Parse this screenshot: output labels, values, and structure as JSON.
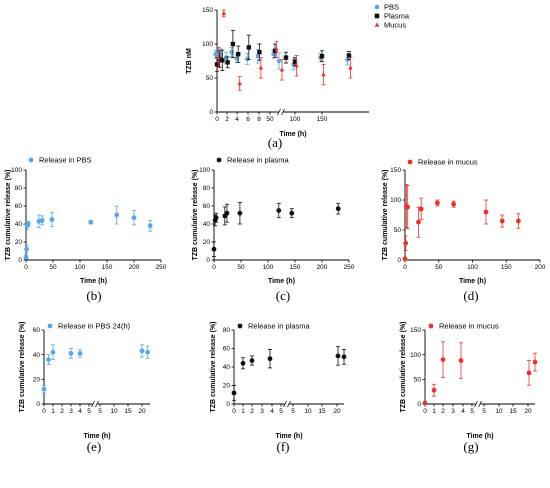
{
  "colors": {
    "pbs": "#5aa6e6",
    "plasma": "#111111",
    "mucus": "#e8332e"
  },
  "chart_data": [
    {
      "panel": "(a)",
      "type": "scatter",
      "xlabel": "Time (h)",
      "ylabel": "TZB nM",
      "ylim": [
        0,
        150
      ],
      "y_ticks": [
        "0",
        "50",
        "100",
        "150"
      ],
      "x_ticks": [
        "0",
        "2",
        "4",
        "6",
        "8",
        "50",
        "100",
        "150"
      ],
      "x_axis_broken": true,
      "grid": false,
      "legend_position": "top-right",
      "series": [
        {
          "name": "PBS",
          "marker": "circle",
          "color_key": "pbs",
          "points": [
            {
              "x": 0,
              "y": 85,
              "err": 6
            },
            {
              "x": 0.5,
              "y": 83,
              "err": 10
            },
            {
              "x": 1,
              "y": 85,
              "err": 8
            },
            {
              "x": 2,
              "y": 80,
              "err": 8
            },
            {
              "x": 3,
              "y": 88,
              "err": 7
            },
            {
              "x": 4,
              "y": 79,
              "err": 6
            },
            {
              "x": 6,
              "y": 78,
              "err": 8
            },
            {
              "x": 8,
              "y": 82,
              "err": 10
            },
            {
              "x": 10,
              "y": 85,
              "err": 6
            },
            {
              "x": 20,
              "y": 75,
              "err": 12
            },
            {
              "x": 50,
              "y": 70,
              "err": 8
            },
            {
              "x": 100,
              "y": 80,
              "err": 6
            },
            {
              "x": 150,
              "y": 77,
              "err": 8
            }
          ]
        },
        {
          "name": "Plasma",
          "marker": "square",
          "color_key": "plasma",
          "points": [
            {
              "x": 0,
              "y": 70,
              "err": 10
            },
            {
              "x": 0.5,
              "y": 78,
              "err": 12
            },
            {
              "x": 1,
              "y": 76,
              "err": 15
            },
            {
              "x": 2,
              "y": 73,
              "err": 8
            },
            {
              "x": 3,
              "y": 100,
              "err": 20
            },
            {
              "x": 4,
              "y": 85,
              "err": 12
            },
            {
              "x": 6,
              "y": 95,
              "err": 18
            },
            {
              "x": 8,
              "y": 88,
              "err": 12
            },
            {
              "x": 10,
              "y": 90,
              "err": 10
            },
            {
              "x": 30,
              "y": 80,
              "err": 8
            },
            {
              "x": 50,
              "y": 74,
              "err": 6
            },
            {
              "x": 100,
              "y": 82,
              "err": 8
            },
            {
              "x": 150,
              "y": 83,
              "err": 6
            }
          ]
        },
        {
          "name": "Mucus",
          "marker": "triangle",
          "color_key": "mucus",
          "points": [
            {
              "x": 0,
              "y": 80,
              "err": 15
            },
            {
              "x": 1,
              "y": 145,
              "err": 5
            },
            {
              "x": 4,
              "y": 42,
              "err": 10
            },
            {
              "x": 8,
              "y": 65,
              "err": 15
            },
            {
              "x": 10,
              "y": 92,
              "err": 12
            },
            {
              "x": 20,
              "y": 62,
              "err": 15
            },
            {
              "x": 50,
              "y": 68,
              "err": 15
            },
            {
              "x": 100,
              "y": 55,
              "err": 15
            },
            {
              "x": 150,
              "y": 65,
              "err": 15
            }
          ]
        }
      ]
    },
    {
      "panel": "(b)",
      "type": "scatter",
      "xlabel": "Time (h)",
      "ylabel": "TZB cumulative release (%)",
      "xlim": [
        0,
        250
      ],
      "ylim": [
        0,
        100
      ],
      "x_ticks": [
        "0",
        "50",
        "100",
        "150",
        "200",
        "250"
      ],
      "y_ticks": [
        "0",
        "20",
        "40",
        "60",
        "80",
        "100"
      ],
      "series": [
        {
          "name": "Release in PBS",
          "color_key": "pbs",
          "points": [
            {
              "x": 0,
              "y": 3,
              "err": 2
            },
            {
              "x": 1,
              "y": 12,
              "err": 4
            },
            {
              "x": 2,
              "y": 38,
              "err": 4
            },
            {
              "x": 4,
              "y": 40,
              "err": 3
            },
            {
              "x": 24,
              "y": 43,
              "err": 7
            },
            {
              "x": 30,
              "y": 44,
              "err": 5
            },
            {
              "x": 48,
              "y": 45,
              "err": 8
            },
            {
              "x": 120,
              "y": 42,
              "err": 2
            },
            {
              "x": 168,
              "y": 50,
              "err": 10
            },
            {
              "x": 200,
              "y": 47,
              "err": 8
            },
            {
              "x": 230,
              "y": 38,
              "err": 6
            }
          ]
        }
      ]
    },
    {
      "panel": "(c)",
      "type": "scatter",
      "xlabel": "Time (h)",
      "ylabel": "TZB cumulative release (%)",
      "xlim": [
        0,
        250
      ],
      "ylim": [
        0,
        100
      ],
      "x_ticks": [
        "0",
        "50",
        "100",
        "150",
        "200",
        "250"
      ],
      "y_ticks": [
        "0",
        "20",
        "40",
        "60",
        "80",
        "100"
      ],
      "series": [
        {
          "name": "Release in plasma",
          "color_key": "plasma",
          "points": [
            {
              "x": 0,
              "y": 12,
              "err": 8
            },
            {
              "x": 2,
              "y": 44,
              "err": 6
            },
            {
              "x": 4,
              "y": 47,
              "err": 5
            },
            {
              "x": 20,
              "y": 49,
              "err": 10
            },
            {
              "x": 24,
              "y": 52,
              "err": 10
            },
            {
              "x": 48,
              "y": 52,
              "err": 12
            },
            {
              "x": 120,
              "y": 55,
              "err": 8
            },
            {
              "x": 144,
              "y": 52,
              "err": 5
            },
            {
              "x": 230,
              "y": 57,
              "err": 6
            }
          ]
        }
      ]
    },
    {
      "panel": "(d)",
      "type": "scatter",
      "xlabel": "Time (h)",
      "ylabel": "TZB cumulative release (%)",
      "xlim": [
        0,
        200
      ],
      "ylim": [
        0,
        150
      ],
      "x_ticks": [
        "0",
        "50",
        "100",
        "150",
        "200"
      ],
      "y_ticks": [
        "0",
        "50",
        "100",
        "150"
      ],
      "series": [
        {
          "name": "Release in mucus",
          "color_key": "mucus",
          "points": [
            {
              "x": 0,
              "y": 2,
              "err": 2
            },
            {
              "x": 1,
              "y": 28,
              "err": 12
            },
            {
              "x": 2,
              "y": 90,
              "err": 36
            },
            {
              "x": 4,
              "y": 88,
              "err": 36
            },
            {
              "x": 20,
              "y": 63,
              "err": 25
            },
            {
              "x": 24,
              "y": 85,
              "err": 18
            },
            {
              "x": 48,
              "y": 95,
              "err": 5
            },
            {
              "x": 72,
              "y": 93,
              "err": 5
            },
            {
              "x": 120,
              "y": 80,
              "err": 20
            },
            {
              "x": 144,
              "y": 65,
              "err": 10
            },
            {
              "x": 168,
              "y": 65,
              "err": 12
            }
          ]
        }
      ]
    },
    {
      "panel": "(e)",
      "type": "scatter",
      "xlabel": "Time (h)",
      "ylabel": "TZB cumulative release (%)",
      "ylim": [
        0,
        60
      ],
      "x_axis_broken": true,
      "x_ticks": [
        "0",
        "1",
        "2",
        "3",
        "4",
        "5",
        "5",
        "10",
        "15",
        "20"
      ],
      "y_ticks": [
        "0",
        "20",
        "40",
        "60"
      ],
      "series": [
        {
          "name": "Release in PBS 24(h)",
          "color_key": "pbs",
          "points": [
            {
              "x": 0,
              "y": 12,
              "err": 3
            },
            {
              "x": 0.5,
              "y": 36,
              "err": 4
            },
            {
              "x": 1,
              "y": 42,
              "err": 6
            },
            {
              "x": 3,
              "y": 41,
              "err": 4
            },
            {
              "x": 4,
              "y": 41,
              "err": 3
            },
            {
              "x": 20,
              "y": 43,
              "err": 5
            },
            {
              "x": 22,
              "y": 42,
              "err": 5
            }
          ]
        }
      ]
    },
    {
      "panel": "(f)",
      "type": "scatter",
      "xlabel": "Time (h)",
      "ylabel": "TZB cumulative release (%)",
      "ylim": [
        0,
        80
      ],
      "x_axis_broken": true,
      "x_ticks": [
        "0",
        "1",
        "2",
        "3",
        "4",
        "5",
        "5",
        "10",
        "15",
        "20"
      ],
      "y_ticks": [
        "0",
        "20",
        "40",
        "60",
        "80"
      ],
      "series": [
        {
          "name": "Release in plasma",
          "color_key": "plasma",
          "points": [
            {
              "x": 0,
              "y": 12,
              "err": 8
            },
            {
              "x": 1,
              "y": 44,
              "err": 6
            },
            {
              "x": 2,
              "y": 47,
              "err": 5
            },
            {
              "x": 4,
              "y": 49,
              "err": 10
            },
            {
              "x": 20,
              "y": 52,
              "err": 10
            },
            {
              "x": 22,
              "y": 51,
              "err": 8
            }
          ]
        }
      ]
    },
    {
      "panel": "(g)",
      "type": "scatter",
      "xlabel": "Time (h)",
      "ylabel": "TZB cumulative release (%)",
      "ylim": [
        0,
        150
      ],
      "x_axis_broken": true,
      "x_ticks": [
        "0",
        "1",
        "2",
        "3",
        "4",
        "5",
        "5",
        "10",
        "15",
        "20"
      ],
      "y_ticks": [
        "0",
        "50",
        "100",
        "150"
      ],
      "series": [
        {
          "name": "Release in mucus",
          "color_key": "mucus",
          "points": [
            {
              "x": 0,
              "y": 2,
              "err": 2
            },
            {
              "x": 1,
              "y": 28,
              "err": 12
            },
            {
              "x": 2,
              "y": 90,
              "err": 36
            },
            {
              "x": 4,
              "y": 88,
              "err": 36
            },
            {
              "x": 20,
              "y": 63,
              "err": 25
            },
            {
              "x": 22,
              "y": 85,
              "err": 18
            }
          ]
        }
      ]
    }
  ]
}
